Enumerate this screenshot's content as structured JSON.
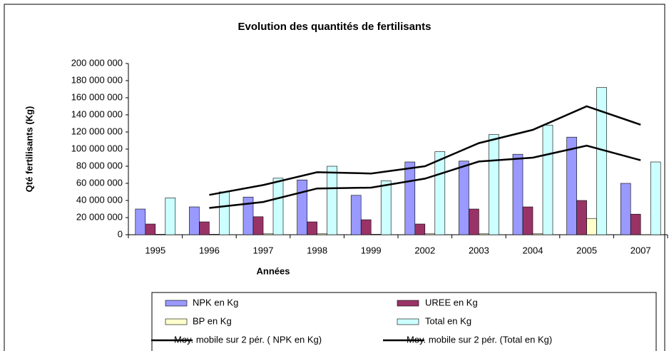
{
  "chart_data": {
    "type": "bar",
    "title": "Evolution des quantités de fertilisants",
    "x_label": "Années",
    "y_label": "Qté fertilisants (Kg)",
    "categories": [
      "1995",
      "1996",
      "1997",
      "1998",
      "1999",
      "2002",
      "2003",
      "2004",
      "2005",
      "2007"
    ],
    "ylim": [
      0,
      200000000
    ],
    "yticks": [
      {
        "value": 0,
        "label": "0"
      },
      {
        "value": 20000000,
        "label": "20 000 000"
      },
      {
        "value": 40000000,
        "label": "40 000 000"
      },
      {
        "value": 60000000,
        "label": "60 000 000"
      },
      {
        "value": 80000000,
        "label": "80 000 000"
      },
      {
        "value": 100000000,
        "label": "100 000 000"
      },
      {
        "value": 120000000,
        "label": "120 000 000"
      },
      {
        "value": 140000000,
        "label": "140 000 000"
      },
      {
        "value": 160000000,
        "label": "160 000 000"
      },
      {
        "value": 180000000,
        "label": "180 000 000"
      },
      {
        "value": 200000000,
        "label": "200 000 000"
      }
    ],
    "grid": false,
    "legend": "bottom",
    "series": [
      {
        "name": "NPK en Kg",
        "type": "bar",
        "color": "#9999ff",
        "values": [
          30000000,
          32500000,
          44000000,
          64000000,
          46000000,
          85000000,
          86000000,
          94000000,
          114000000,
          60000000
        ]
      },
      {
        "name": "UREE en Kg",
        "type": "bar",
        "color": "#993366",
        "values": [
          12500000,
          15000000,
          21000000,
          15000000,
          17500000,
          12500000,
          30000000,
          32500000,
          40000000,
          24000000
        ]
      },
      {
        "name": "BP en Kg",
        "type": "bar",
        "color": "#ffffcc",
        "values": [
          500000,
          500000,
          1000000,
          1000000,
          500000,
          1000000,
          1000000,
          1000000,
          19000000,
          0
        ]
      },
      {
        "name": "Total en Kg",
        "type": "bar",
        "color": "#ccffff",
        "values": [
          43000000,
          50000000,
          66000000,
          80000000,
          63000000,
          97000000,
          117000000,
          128000000,
          172000000,
          85000000
        ]
      },
      {
        "name": "Moy. mobile sur 2 pér. ( NPK en Kg)",
        "type": "line",
        "color": "#000000",
        "values": [
          null,
          31250000,
          38250000,
          54000000,
          55000000,
          65500000,
          85500000,
          90000000,
          104000000,
          87000000
        ]
      },
      {
        "name": "Moy. mobile sur 2 pér. (Total en Kg)",
        "type": "line",
        "color": "#000000",
        "values": [
          null,
          46500000,
          58000000,
          73000000,
          71500000,
          80000000,
          107000000,
          122500000,
          150000000,
          128500000
        ]
      }
    ]
  }
}
